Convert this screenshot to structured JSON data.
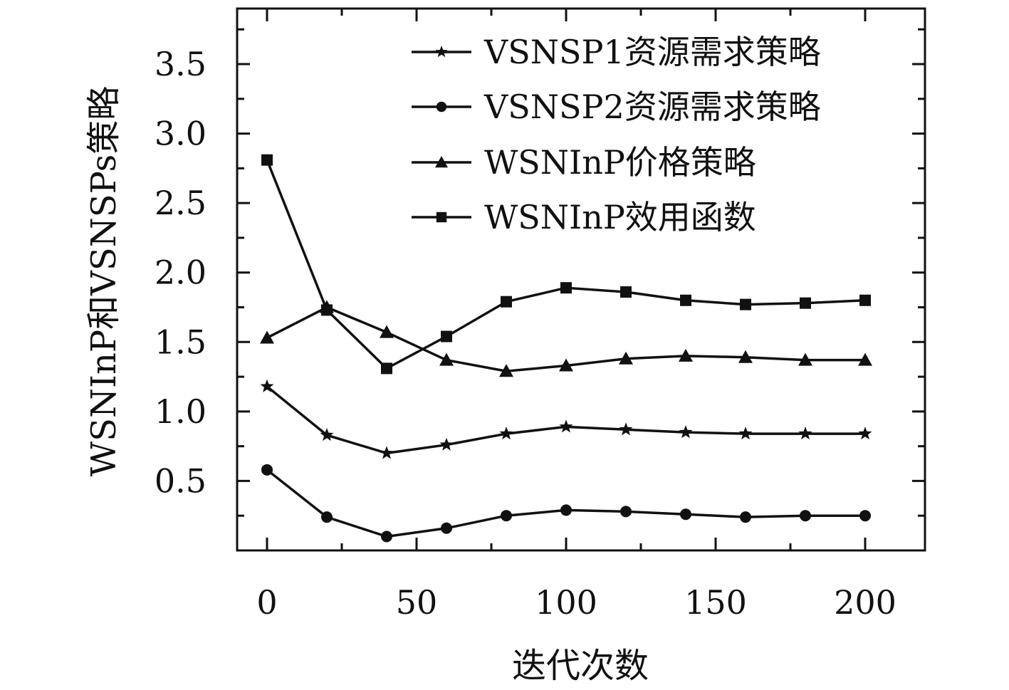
{
  "chart_data": {
    "type": "line",
    "xlabel": "迭代次数",
    "ylabel": "WSNInP和VSNSPs策略",
    "xlim": [
      -10,
      220
    ],
    "ylim": [
      0,
      3.9
    ],
    "x_ticks": [
      0,
      50,
      100,
      150,
      200
    ],
    "y_ticks": [
      0.5,
      1.0,
      1.5,
      2.0,
      2.5,
      3.0,
      3.5
    ],
    "x_tick_labels": [
      "0",
      "50",
      "100",
      "150",
      "200"
    ],
    "y_tick_labels": [
      "0.5",
      "1.0",
      "1.5",
      "2.0",
      "2.5",
      "3.0",
      "3.5"
    ],
    "grid": false,
    "legend_position": "top-right",
    "x": [
      0,
      20,
      40,
      60,
      80,
      100,
      120,
      140,
      160,
      180,
      200
    ],
    "series": [
      {
        "name": "VSNSP1资源需求策略",
        "marker": "star",
        "values": [
          1.18,
          0.83,
          0.7,
          0.76,
          0.84,
          0.89,
          0.87,
          0.85,
          0.84,
          0.84,
          0.84
        ]
      },
      {
        "name": "VSNSP2资源需求策略",
        "marker": "circle",
        "values": [
          0.58,
          0.24,
          0.1,
          0.16,
          0.25,
          0.29,
          0.28,
          0.26,
          0.24,
          0.25,
          0.25
        ]
      },
      {
        "name": "WSNInP价格策略",
        "marker": "triangle",
        "values": [
          1.53,
          1.75,
          1.57,
          1.37,
          1.29,
          1.33,
          1.38,
          1.4,
          1.39,
          1.37,
          1.37
        ]
      },
      {
        "name": "WSNInP效用函数",
        "marker": "square",
        "values": [
          2.81,
          1.73,
          1.31,
          1.54,
          1.79,
          1.89,
          1.86,
          1.8,
          1.77,
          1.78,
          1.8
        ]
      }
    ]
  }
}
